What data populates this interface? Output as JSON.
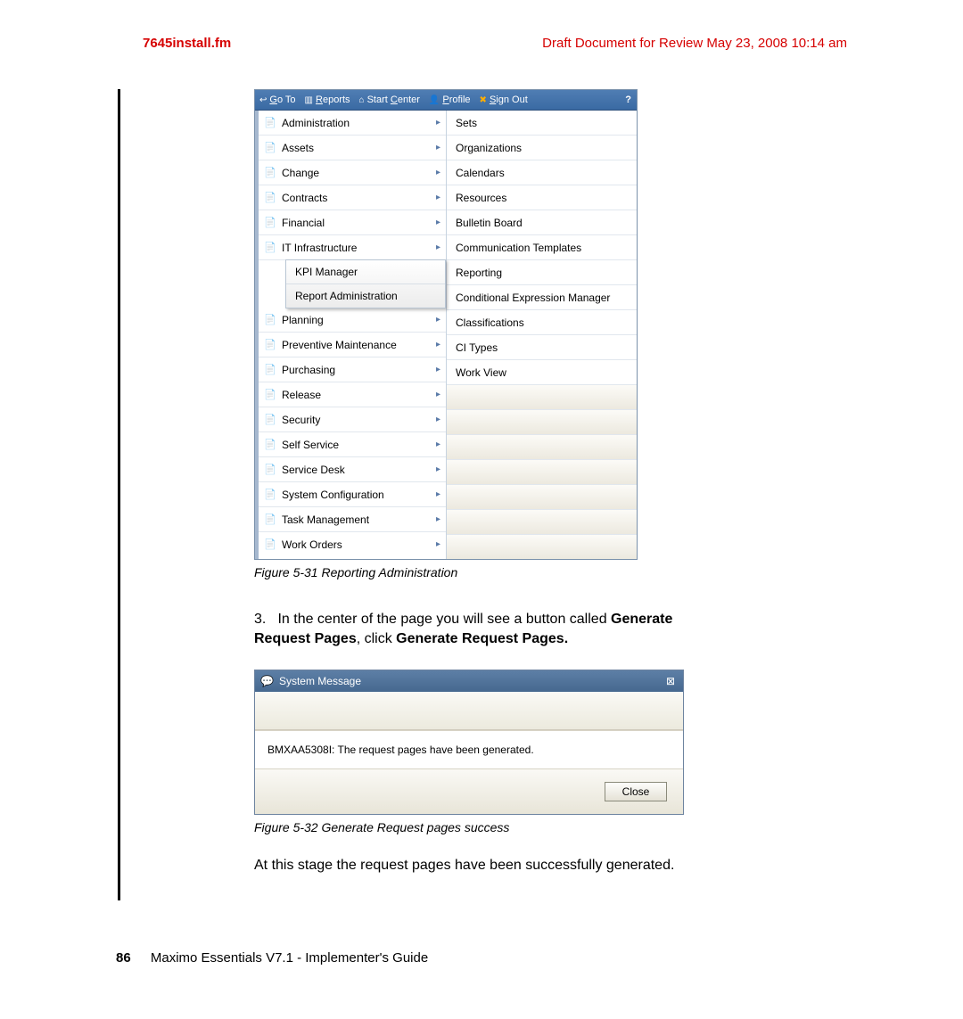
{
  "header": {
    "left": "7645install.fm",
    "right": "Draft Document for Review May 23, 2008 10:14 am"
  },
  "navbar": {
    "goto": "Go To",
    "reports": "Reports",
    "start": "Start Center",
    "profile": "Profile",
    "signout": "Sign Out",
    "help": "?"
  },
  "leftMenu": [
    "Administration",
    "Assets",
    "Change",
    "Contracts",
    "Financial",
    "IT Infrastructure"
  ],
  "subMenu": {
    "a": "KPI Manager",
    "b": "Report Administration"
  },
  "leftMenu2": [
    "Planning",
    "Preventive Maintenance",
    "Purchasing",
    "Release",
    "Security",
    "Self Service",
    "Service Desk",
    "System Configuration",
    "Task Management",
    "Work Orders"
  ],
  "rightMenu": [
    "Sets",
    "Organizations",
    "Calendars",
    "Resources",
    "Bulletin Board",
    "Communication Templates",
    "Reporting",
    "Conditional Expression Manager",
    "Classifications",
    "CI Types",
    "Work View"
  ],
  "figCaption31": "Figure 5-31   Reporting Administration",
  "step3": {
    "num": "3.",
    "pre": "In the center of the page you will see a button called ",
    "bold1": "Generate Request Pages",
    "mid": ", click ",
    "bold2": "Generate Request Pages."
  },
  "dialog": {
    "title": "System Message",
    "msg": "BMXAA5308I: The request pages have been generated.",
    "close": "Close"
  },
  "figCaption32": "Figure 5-32   Generate Request pages success",
  "bodyText": "At this stage the request pages have been successfully generated.",
  "footer": {
    "page": "86",
    "title": "Maximo Essentials V7.1 - Implementer's Guide"
  },
  "colors": {
    "red": "#d60000",
    "navbar": "#3a6aa3"
  }
}
